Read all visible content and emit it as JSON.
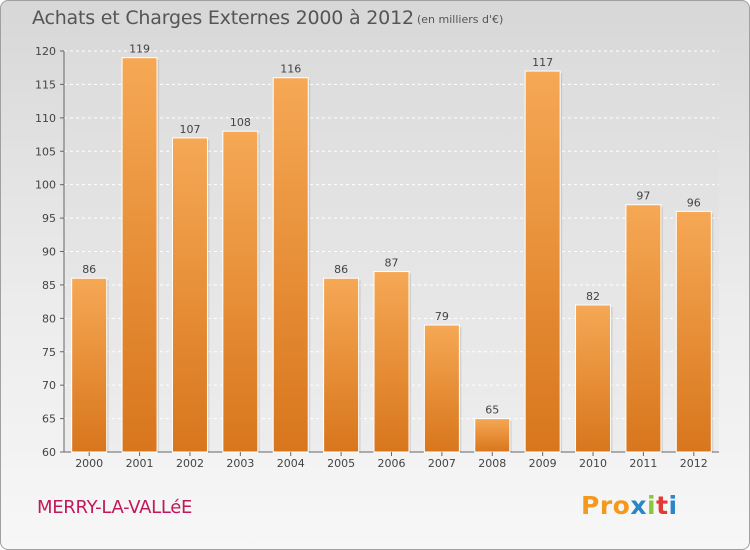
{
  "header": {
    "title": "Achats et Charges Externes 2000 à 2012",
    "unit": "(en milliers d'€)"
  },
  "footer": {
    "commune": "MERRY-LA-VALLéE",
    "logo": "Proxiti"
  },
  "colors": {
    "bar_light": "#f6a855",
    "bar_dark": "#d8761c",
    "commune": "#c2185b",
    "logo_letters": [
      "#f39a1e",
      "#f39a1e",
      "#f39a1e",
      "#2b86c6",
      "#8cc63f",
      "#e53935",
      "#2b86c6"
    ]
  },
  "chart_data": {
    "type": "bar",
    "title": "Achats et Charges Externes 2000 à 2012",
    "subtitle": "(en milliers d'€)",
    "categories": [
      "2000",
      "2001",
      "2002",
      "2003",
      "2004",
      "2005",
      "2006",
      "2007",
      "2008",
      "2009",
      "2010",
      "2011",
      "2012"
    ],
    "values": [
      86,
      119,
      107,
      108,
      116,
      86,
      87,
      79,
      65,
      117,
      82,
      97,
      96
    ],
    "ylim": [
      60,
      120
    ],
    "yticks": [
      60,
      65,
      70,
      75,
      80,
      85,
      90,
      95,
      100,
      105,
      110,
      115,
      120
    ],
    "grid": true,
    "legend": "none"
  }
}
